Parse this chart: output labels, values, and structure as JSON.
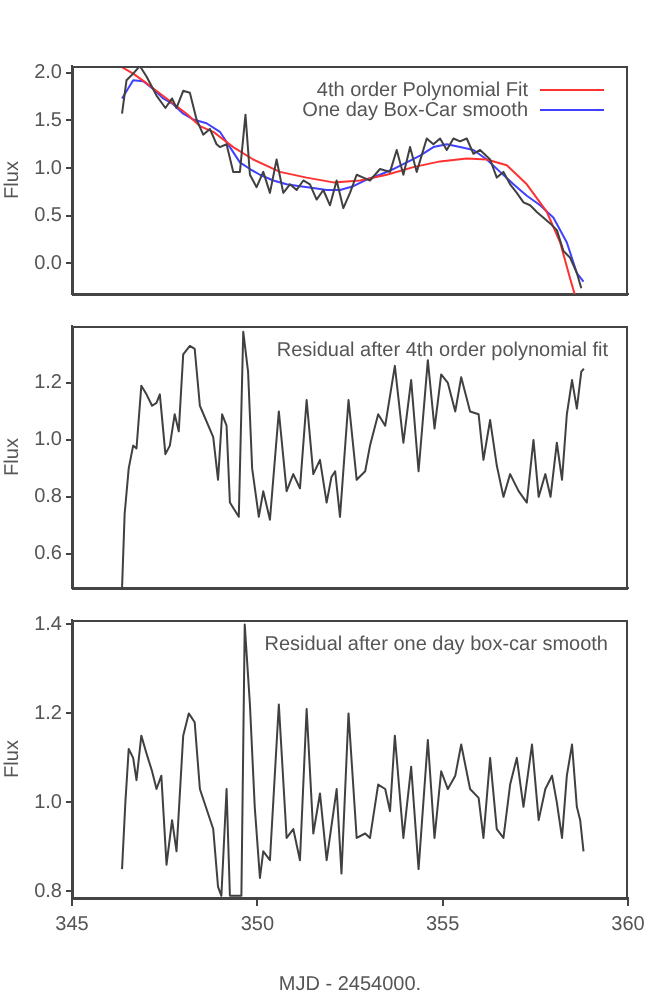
{
  "chart_data": [
    {
      "type": "line",
      "ylabel": "Flux",
      "xlim": [
        345,
        360
      ],
      "xticks": [
        345,
        350,
        355,
        360
      ],
      "ylim": [
        -0.32,
        2.07
      ],
      "yticks": [
        {
          "value": 0,
          "label": "0.0"
        },
        0.5,
        {
          "value": 1,
          "label": "1.0"
        },
        1.5,
        {
          "value": 2,
          "label": "2.0"
        }
      ],
      "tick_labels": "y",
      "grid": false,
      "legend": "top right",
      "marker": "none",
      "line_style": "solid",
      "series": [
        {
          "color": "#404040",
          "x": [
            346.35,
            346.47,
            346.65,
            346.83,
            347.01,
            347.28,
            347.52,
            347.7,
            347.82,
            348.0,
            348.18,
            348.36,
            348.54,
            348.72,
            348.9,
            348.99,
            349.17,
            349.35,
            349.53,
            349.68,
            349.8,
            349.98,
            350.16,
            350.34,
            350.52,
            350.7,
            350.88,
            351.06,
            351.24,
            351.42,
            351.6,
            351.78,
            351.96,
            352.14,
            352.32,
            352.5,
            352.68,
            352.86,
            353.04,
            353.31,
            353.58,
            353.76,
            353.94,
            354.12,
            354.3,
            354.57,
            354.75,
            354.93,
            355.11,
            355.29,
            355.47,
            355.65,
            355.83,
            356.01,
            356.28,
            356.46,
            356.64,
            356.82,
            357.0,
            357.18,
            357.36,
            357.54,
            357.72,
            357.9,
            358.08,
            358.26,
            358.44,
            358.62,
            358.74
          ],
          "values": [
            1.57,
            1.92,
            1.99,
            2.07,
            1.96,
            1.76,
            1.63,
            1.73,
            1.63,
            1.81,
            1.79,
            1.51,
            1.35,
            1.41,
            1.25,
            1.22,
            1.25,
            0.96,
            0.96,
            1.56,
            0.93,
            0.8,
            0.96,
            0.74,
            1.09,
            0.74,
            0.83,
            0.77,
            0.87,
            0.83,
            0.67,
            0.77,
            0.61,
            0.87,
            0.58,
            0.74,
            0.93,
            0.9,
            0.87,
            0.99,
            0.96,
            1.19,
            0.93,
            1.22,
            0.96,
            1.31,
            1.25,
            1.31,
            1.19,
            1.31,
            1.28,
            1.31,
            1.15,
            1.19,
            1.09,
            0.9,
            0.96,
            0.83,
            0.74,
            0.64,
            0.61,
            0.54,
            0.48,
            0.42,
            0.35,
            0.13,
            0.06,
            -0.1,
            -0.26
          ]
        },
        {
          "name": "4th order Polynomial Fit",
          "color": "#ff3030",
          "x": [
            346.29,
            346.65,
            347.01,
            347.55,
            348.09,
            348.45,
            348.81,
            349.35,
            349.89,
            350.61,
            351.33,
            352.05,
            352.77,
            353.49,
            354.21,
            354.93,
            355.65,
            356.19,
            356.73,
            357.27,
            357.81,
            358.17,
            358.44,
            358.56
          ],
          "values": [
            2.07,
            1.99,
            1.89,
            1.73,
            1.57,
            1.44,
            1.38,
            1.22,
            1.09,
            0.96,
            0.9,
            0.85,
            0.87,
            0.93,
            1.01,
            1.07,
            1.1,
            1.09,
            1.03,
            0.83,
            0.54,
            0.22,
            -0.16,
            -0.32
          ]
        },
        {
          "name": "One day Box-Car smooth",
          "color": "#4040ff",
          "x": [
            346.35,
            346.65,
            346.92,
            347.19,
            347.46,
            347.73,
            348.0,
            348.27,
            348.63,
            348.99,
            349.26,
            349.53,
            349.8,
            350.07,
            350.43,
            350.79,
            351.15,
            351.51,
            351.87,
            352.23,
            352.59,
            352.95,
            353.31,
            353.67,
            354.03,
            354.39,
            354.75,
            355.11,
            355.47,
            355.83,
            356.19,
            356.55,
            356.91,
            357.27,
            357.63,
            357.99,
            358.35,
            358.62,
            358.8
          ],
          "values": [
            1.73,
            1.92,
            1.91,
            1.83,
            1.73,
            1.67,
            1.57,
            1.51,
            1.47,
            1.38,
            1.22,
            1.06,
            0.99,
            0.93,
            0.87,
            0.83,
            0.81,
            0.79,
            0.77,
            0.77,
            0.81,
            0.88,
            0.93,
            0.99,
            1.06,
            1.13,
            1.22,
            1.25,
            1.22,
            1.19,
            1.09,
            0.96,
            0.83,
            0.71,
            0.61,
            0.48,
            0.22,
            -0.1,
            -0.19
          ]
        }
      ]
    },
    {
      "type": "line",
      "ylabel": "Flux",
      "xlim": [
        345,
        360
      ],
      "xticks": [
        345,
        350,
        355,
        360
      ],
      "ylim": [
        0.48,
        1.4
      ],
      "yticks": [
        0.6,
        0.8,
        {
          "value": 1,
          "label": "1.0"
        },
        1.2
      ],
      "tick_labels": "y",
      "grid": false,
      "marker": "none",
      "line_style": "solid",
      "annotations": [
        "Residual after 4th order polynomial fit"
      ],
      "series": [
        {
          "color": "#404040",
          "x": [
            346.35,
            346.42,
            346.53,
            346.65,
            346.74,
            346.87,
            347.01,
            347.16,
            347.28,
            347.37,
            347.52,
            347.64,
            347.77,
            347.88,
            348.0,
            348.18,
            348.31,
            348.45,
            348.81,
            348.94,
            349.05,
            349.17,
            349.26,
            349.5,
            349.62,
            349.75,
            349.86,
            350.04,
            350.16,
            350.34,
            350.58,
            350.79,
            350.97,
            351.15,
            351.33,
            351.51,
            351.69,
            351.87,
            352.0,
            352.1,
            352.23,
            352.46,
            352.68,
            352.91,
            353.04,
            353.26,
            353.45,
            353.71,
            353.94,
            354.15,
            354.35,
            354.6,
            354.78,
            354.96,
            355.14,
            355.34,
            355.5,
            355.74,
            355.97,
            356.1,
            356.28,
            356.46,
            356.64,
            356.82,
            357.05,
            357.27,
            357.45,
            357.59,
            357.77,
            357.91,
            358.08,
            358.22,
            358.35,
            358.49,
            358.62,
            358.74,
            358.81
          ],
          "values": [
            0.48,
            0.74,
            0.9,
            0.98,
            0.97,
            1.19,
            1.16,
            1.12,
            1.13,
            1.16,
            0.95,
            0.98,
            1.09,
            1.03,
            1.3,
            1.33,
            1.32,
            1.12,
            1.01,
            0.86,
            1.09,
            1.05,
            0.78,
            0.73,
            1.38,
            1.24,
            0.9,
            0.73,
            0.82,
            0.72,
            1.1,
            0.82,
            0.88,
            0.83,
            1.14,
            0.88,
            0.93,
            0.78,
            0.87,
            0.89,
            0.73,
            1.14,
            0.86,
            0.89,
            0.98,
            1.09,
            1.05,
            1.26,
            0.99,
            1.21,
            0.89,
            1.28,
            1.04,
            1.23,
            1.2,
            1.1,
            1.22,
            1.1,
            1.09,
            0.93,
            1.07,
            0.91,
            0.8,
            0.88,
            0.82,
            0.78,
            1.0,
            0.8,
            0.88,
            0.8,
            0.99,
            0.86,
            1.09,
            1.21,
            1.11,
            1.24,
            1.25
          ]
        }
      ]
    },
    {
      "type": "line",
      "xlabel": "MJD - 2454000.",
      "ylabel": "Flux",
      "xlim": [
        345,
        360
      ],
      "xticks": [
        345,
        350,
        355,
        360
      ],
      "ylim": [
        0.785,
        1.41
      ],
      "yticks": [
        0.8,
        {
          "value": 1,
          "label": "1.0"
        },
        1.2,
        1.4
      ],
      "grid": false,
      "marker": "none",
      "line_style": "solid",
      "annotations": [
        "Residual after one day box-car smooth"
      ],
      "series": [
        {
          "color": "#404040",
          "x": [
            346.35,
            346.44,
            346.53,
            346.65,
            346.74,
            346.87,
            347.01,
            347.16,
            347.28,
            347.41,
            347.55,
            347.7,
            347.82,
            348.0,
            348.15,
            348.31,
            348.45,
            348.81,
            348.94,
            349.03,
            349.17,
            349.26,
            349.57,
            349.66,
            349.8,
            349.93,
            350.07,
            350.16,
            350.34,
            350.58,
            350.79,
            350.97,
            351.15,
            351.33,
            351.51,
            351.69,
            351.87,
            352.14,
            352.27,
            352.46,
            352.68,
            352.91,
            353.04,
            353.26,
            353.45,
            353.58,
            353.71,
            353.94,
            354.15,
            354.35,
            354.6,
            354.78,
            354.96,
            355.14,
            355.34,
            355.5,
            355.74,
            355.97,
            356.1,
            356.28,
            356.46,
            356.64,
            356.82,
            357.0,
            357.18,
            357.41,
            357.59,
            357.77,
            357.95,
            358.08,
            358.22,
            358.35,
            358.49,
            358.62,
            358.71,
            358.8
          ],
          "values": [
            0.85,
            1.0,
            1.12,
            1.1,
            1.05,
            1.15,
            1.11,
            1.07,
            1.03,
            1.06,
            0.86,
            0.96,
            0.89,
            1.15,
            1.2,
            1.18,
            1.03,
            0.94,
            0.81,
            0.79,
            1.03,
            0.79,
            0.79,
            1.4,
            1.22,
            0.99,
            0.83,
            0.89,
            0.87,
            1.22,
            0.92,
            0.94,
            0.87,
            1.21,
            0.93,
            1.02,
            0.87,
            1.03,
            0.84,
            1.2,
            0.92,
            0.93,
            0.92,
            1.04,
            1.03,
            0.98,
            1.15,
            0.92,
            1.08,
            0.85,
            1.14,
            0.92,
            1.07,
            1.03,
            1.06,
            1.13,
            1.03,
            1.01,
            0.92,
            1.1,
            0.94,
            0.92,
            1.04,
            1.1,
            0.99,
            1.13,
            0.96,
            1.03,
            1.06,
            1.0,
            0.92,
            1.06,
            1.13,
            0.99,
            0.96,
            0.89
          ]
        }
      ]
    }
  ]
}
